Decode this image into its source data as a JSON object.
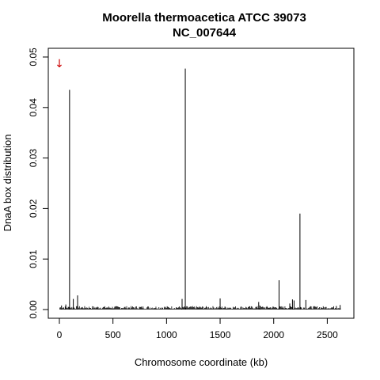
{
  "chart_data": {
    "type": "bar",
    "title": "Moorella thermoacetica ATCC 39073",
    "subtitle": "NC_007644",
    "xlabel": "Chromosome coordinate (kb)",
    "ylabel": "DnaA box distribution",
    "xlim": [
      0,
      2630
    ],
    "ylim": [
      0,
      0.05
    ],
    "x_ticks": [
      0,
      500,
      1000,
      1500,
      2000,
      2500
    ],
    "x_tick_labels": [
      "0",
      "500",
      "1000",
      "1500",
      "2000",
      "2500"
    ],
    "y_ticks": [
      0,
      0.01,
      0.02,
      0.03,
      0.04,
      0.05
    ],
    "y_tick_labels": [
      "0.00",
      "0.01",
      "0.02",
      "0.03",
      "0.04",
      "0.05"
    ],
    "grid": false,
    "origin_marker": {
      "x": 0,
      "symbol": "↓",
      "color": "#cc0000"
    },
    "series": [
      {
        "color": "#000000",
        "peaks": [
          {
            "x": 95,
            "y": 0.0435
          },
          {
            "x": 1175,
            "y": 0.0477
          },
          {
            "x": 2245,
            "y": 0.019
          },
          {
            "x": 2050,
            "y": 0.0058
          },
          {
            "x": 170,
            "y": 0.0028
          },
          {
            "x": 1500,
            "y": 0.0022
          },
          {
            "x": 130,
            "y": 0.0021
          },
          {
            "x": 1145,
            "y": 0.0021
          },
          {
            "x": 2175,
            "y": 0.002
          },
          {
            "x": 2190,
            "y": 0.0018
          },
          {
            "x": 2300,
            "y": 0.0019
          },
          {
            "x": 1860,
            "y": 0.0015
          },
          {
            "x": 60,
            "y": 0.001
          },
          {
            "x": 20,
            "y": 0.0008
          },
          {
            "x": 2620,
            "y": 0.0009
          },
          {
            "x": 2150,
            "y": 0.0012
          },
          {
            "x": 1870,
            "y": 0.0008
          },
          {
            "x": 2585,
            "y": 0.0007
          }
        ],
        "baseline_level": 0.0004
      }
    ]
  }
}
